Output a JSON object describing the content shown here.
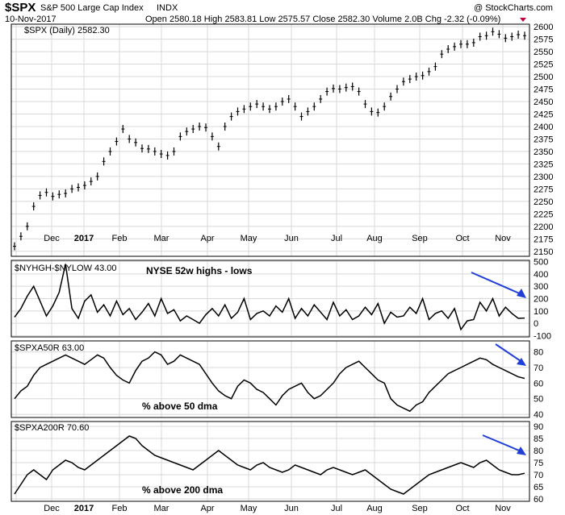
{
  "header": {
    "symbol": "$SPX",
    "name": "S&P 500 Large Cap Index",
    "exchange": "INDX",
    "date": "10-Nov-2017",
    "copyright": "@ StockCharts.com",
    "quote": "Open 2580.18  High 2583.81  Low 2575.57  Close 2582.30  Volume 2.0B  Chg -2.32 (-0.09%)",
    "down_color": "#c0003a"
  },
  "x_labels": [
    {
      "label": "Dec",
      "bold": false
    },
    {
      "label": "2017",
      "bold": true
    },
    {
      "label": "Feb",
      "bold": false
    },
    {
      "label": "Mar",
      "bold": false
    },
    {
      "label": "Apr",
      "bold": false
    },
    {
      "label": "May",
      "bold": false
    },
    {
      "label": "Jun",
      "bold": false
    },
    {
      "label": "Jul",
      "bold": false
    },
    {
      "label": "Aug",
      "bold": false
    },
    {
      "label": "Sep",
      "bold": false
    },
    {
      "label": "Oct",
      "bold": false
    },
    {
      "label": "Nov",
      "bold": false
    }
  ],
  "chart_data": [
    {
      "type": "line",
      "legend": "$SPX (Daily) 2582.30",
      "ylim": [
        2140,
        2605
      ],
      "yticks": [
        2150,
        2175,
        2200,
        2225,
        2250,
        2275,
        2300,
        2325,
        2350,
        2375,
        2400,
        2425,
        2450,
        2475,
        2500,
        2525,
        2550,
        2575,
        2600
      ],
      "x": [
        0,
        3,
        6,
        9,
        12,
        15,
        18,
        21,
        24,
        27,
        30,
        33,
        36,
        39,
        42,
        45,
        48,
        51,
        54,
        57,
        60,
        63,
        66,
        69,
        72,
        75,
        78,
        81,
        84,
        87,
        90,
        93,
        96,
        99,
        102,
        105,
        108,
        111,
        114,
        117,
        120,
        123,
        126,
        129,
        132,
        135,
        138,
        141,
        144,
        147,
        150,
        153,
        156,
        159,
        162,
        165,
        168,
        171,
        174,
        177,
        180,
        183,
        186,
        189,
        192,
        195,
        198,
        201,
        204,
        207,
        210,
        213,
        216,
        219,
        222,
        225,
        228,
        231,
        234,
        237,
        240
      ],
      "values": [
        2160,
        2180,
        2200,
        2240,
        2262,
        2268,
        2260,
        2264,
        2266,
        2275,
        2278,
        2282,
        2290,
        2300,
        2330,
        2350,
        2370,
        2395,
        2375,
        2368,
        2356,
        2355,
        2350,
        2345,
        2342,
        2350,
        2380,
        2390,
        2395,
        2400,
        2398,
        2380,
        2360,
        2400,
        2420,
        2430,
        2435,
        2440,
        2445,
        2440,
        2435,
        2440,
        2450,
        2455,
        2440,
        2420,
        2430,
        2440,
        2455,
        2470,
        2476,
        2475,
        2478,
        2480,
        2470,
        2445,
        2430,
        2428,
        2440,
        2460,
        2475,
        2490,
        2495,
        2500,
        2502,
        2510,
        2520,
        2545,
        2555,
        2560,
        2565,
        2565,
        2568,
        2580,
        2582,
        2590,
        2585,
        2577,
        2580,
        2584,
        2582
      ]
    },
    {
      "type": "line",
      "legend": "$NYHGH-$NYLOW 43.00",
      "annotation": "NYSE 52w highs - lows",
      "ylim": [
        -110,
        510
      ],
      "yticks": [
        -100,
        0,
        100,
        200,
        300,
        400,
        500
      ],
      "values": [
        50,
        120,
        220,
        300,
        180,
        60,
        140,
        250,
        480,
        120,
        40,
        180,
        230,
        90,
        150,
        60,
        180,
        70,
        120,
        30,
        90,
        160,
        60,
        200,
        80,
        110,
        20,
        60,
        30,
        0,
        70,
        120,
        60,
        150,
        40,
        90,
        200,
        30,
        80,
        100,
        60,
        140,
        90,
        200,
        40,
        120,
        60,
        150,
        90,
        30,
        170,
        60,
        110,
        30,
        60,
        130,
        70,
        160,
        0,
        90,
        50,
        60,
        130,
        80,
        200,
        30,
        80,
        100,
        40,
        120,
        -50,
        20,
        30,
        170,
        100,
        200,
        60,
        130,
        80,
        40,
        43
      ]
    },
    {
      "type": "line",
      "legend": "$SPXA50R 63.00",
      "annotation": "% above 50 dma",
      "ylim": [
        38,
        87
      ],
      "yticks": [
        40,
        50,
        60,
        70,
        80
      ],
      "values": [
        50,
        55,
        58,
        65,
        70,
        72,
        74,
        76,
        78,
        76,
        74,
        72,
        75,
        78,
        76,
        70,
        65,
        62,
        60,
        68,
        74,
        76,
        80,
        78,
        72,
        74,
        78,
        76,
        74,
        72,
        66,
        60,
        55,
        52,
        50,
        58,
        62,
        60,
        56,
        54,
        50,
        46,
        52,
        56,
        58,
        60,
        54,
        50,
        52,
        56,
        60,
        66,
        70,
        72,
        74,
        70,
        66,
        62,
        60,
        50,
        46,
        44,
        42,
        46,
        48,
        54,
        58,
        62,
        66,
        68,
        70,
        72,
        74,
        76,
        75,
        72,
        70,
        68,
        66,
        64,
        63
      ]
    },
    {
      "type": "line",
      "legend": "$SPXA200R 70.60",
      "annotation": "% above 200 dma",
      "ylim": [
        59,
        92
      ],
      "yticks": [
        60,
        65,
        70,
        75,
        80,
        85,
        90
      ],
      "values": [
        62,
        66,
        70,
        72,
        70,
        68,
        72,
        74,
        76,
        75,
        73,
        72,
        74,
        76,
        78,
        80,
        82,
        84,
        86,
        85,
        82,
        80,
        78,
        77,
        76,
        75,
        74,
        73,
        72,
        74,
        76,
        78,
        80,
        78,
        76,
        74,
        73,
        72,
        74,
        75,
        73,
        72,
        71,
        72,
        74,
        73,
        72,
        71,
        70,
        72,
        73,
        72,
        71,
        70,
        71,
        72,
        70,
        68,
        66,
        64,
        63,
        62,
        64,
        66,
        68,
        70,
        71,
        72,
        73,
        74,
        75,
        74,
        73,
        75,
        76,
        74,
        72,
        71,
        70,
        70,
        70.6
      ]
    }
  ]
}
